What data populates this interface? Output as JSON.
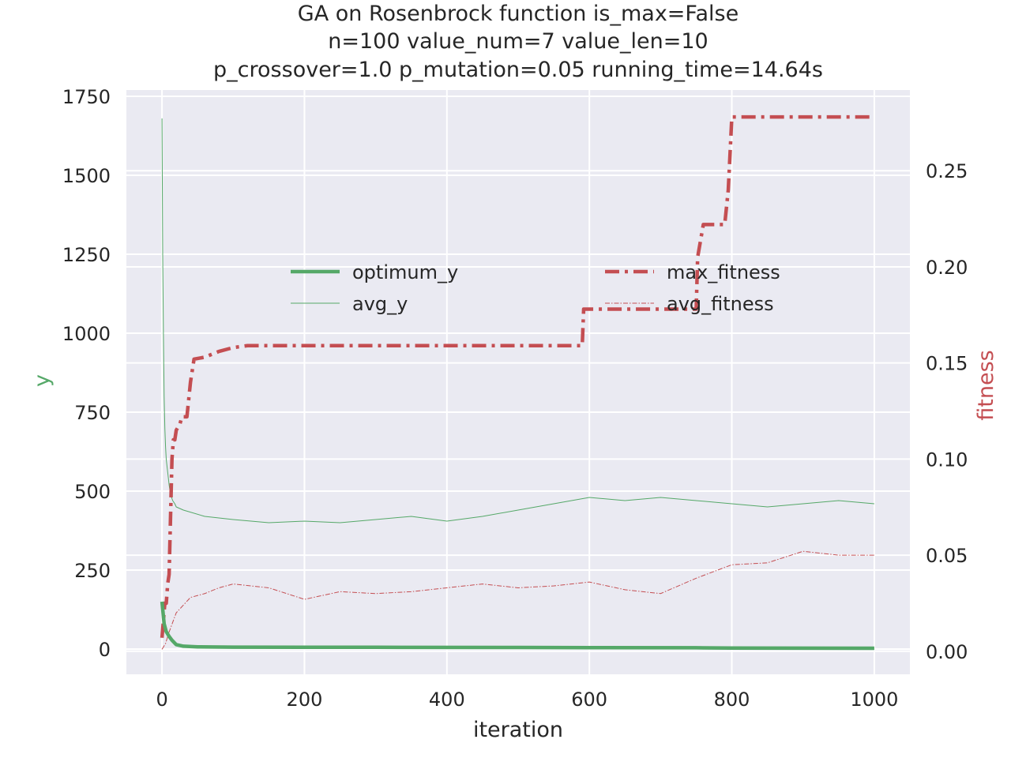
{
  "chart_data": {
    "type": "line",
    "title": {
      "line1": "GA on Rosenbrock function  is_max=False",
      "line2": "n=100  value_num=7  value_len=10",
      "line3": "p_crossover=1.0  p_mutation=0.05 running_time=14.64s"
    },
    "xlabel": "iteration",
    "ylabel_left": "y",
    "ylabel_right": "fitness",
    "xlim": [
      -50,
      1050
    ],
    "ylim_left": [
      -80,
      1770
    ],
    "ylim_right": [
      -0.012,
      0.292
    ],
    "x_ticks": [
      0,
      200,
      400,
      600,
      800,
      1000
    ],
    "y_ticks_left": [
      0,
      250,
      500,
      750,
      1000,
      1250,
      1500,
      1750
    ],
    "y_ticks_right": [
      0.0,
      0.05,
      0.1,
      0.15,
      0.2,
      0.25
    ],
    "y_tick_labels_right": [
      "0.00",
      "0.05",
      "0.10",
      "0.15",
      "0.20",
      "0.25"
    ],
    "grid": true,
    "legend_left": {
      "placement": "center-left",
      "entries": [
        "optimum_y",
        "avg_y"
      ]
    },
    "legend_right": {
      "placement": "center-right",
      "entries": [
        "max_fitness",
        "avg_fitness"
      ]
    },
    "colors": {
      "green": "#55a868",
      "red": "#c44e52",
      "axes_bg": "#eaeaf2",
      "grid": "#ffffff"
    },
    "series": [
      {
        "name": "optimum_y",
        "axis": "left",
        "style": "solid",
        "color": "#55a868",
        "x": [
          0,
          3,
          6,
          10,
          14,
          20,
          30,
          50,
          100,
          300,
          500,
          600,
          750,
          800,
          1000
        ],
        "y": [
          150,
          80,
          55,
          40,
          28,
          14,
          9,
          7,
          6,
          5.5,
          5,
          4.5,
          4,
          3,
          2.5
        ]
      },
      {
        "name": "avg_y",
        "axis": "left",
        "style": "solid-thin",
        "color": "#55a868",
        "x": [
          0,
          1,
          2,
          3,
          4,
          5,
          6,
          8,
          10,
          12,
          15,
          18,
          20,
          30,
          60,
          100,
          150,
          200,
          250,
          300,
          350,
          400,
          450,
          500,
          550,
          600,
          650,
          700,
          750,
          800,
          850,
          900,
          950,
          1000
        ],
        "y": [
          1680,
          1250,
          1000,
          800,
          700,
          640,
          600,
          560,
          520,
          490,
          470,
          460,
          450,
          440,
          420,
          410,
          400,
          405,
          400,
          410,
          420,
          405,
          420,
          440,
          460,
          480,
          470,
          480,
          470,
          460,
          450,
          460,
          470,
          460
        ]
      },
      {
        "name": "max_fitness",
        "axis": "right",
        "style": "dashdot",
        "color": "#c44e52",
        "x": [
          0,
          4,
          6,
          8,
          10,
          12,
          14,
          16,
          18,
          20,
          25,
          28,
          35,
          40,
          45,
          60,
          80,
          100,
          120,
          590,
          592,
          600,
          750,
          752,
          760,
          790,
          795,
          800,
          1000
        ],
        "y": [
          0.007,
          0.025,
          0.025,
          0.035,
          0.04,
          0.07,
          0.1,
          0.11,
          0.11,
          0.115,
          0.118,
          0.122,
          0.122,
          0.14,
          0.152,
          0.153,
          0.156,
          0.158,
          0.159,
          0.159,
          0.178,
          0.178,
          0.178,
          0.205,
          0.222,
          0.222,
          0.24,
          0.278,
          0.278
        ]
      },
      {
        "name": "avg_fitness",
        "axis": "right",
        "style": "dashdot-thin",
        "color": "#c44e52",
        "x": [
          0,
          5,
          10,
          20,
          40,
          60,
          80,
          100,
          150,
          200,
          250,
          300,
          350,
          400,
          450,
          500,
          550,
          600,
          650,
          700,
          750,
          800,
          850,
          900,
          950,
          1000
        ],
        "y": [
          0.001,
          0.004,
          0.01,
          0.02,
          0.028,
          0.03,
          0.033,
          0.035,
          0.033,
          0.027,
          0.031,
          0.03,
          0.031,
          0.033,
          0.035,
          0.033,
          0.034,
          0.036,
          0.032,
          0.03,
          0.038,
          0.045,
          0.046,
          0.052,
          0.05,
          0.05
        ]
      }
    ]
  }
}
